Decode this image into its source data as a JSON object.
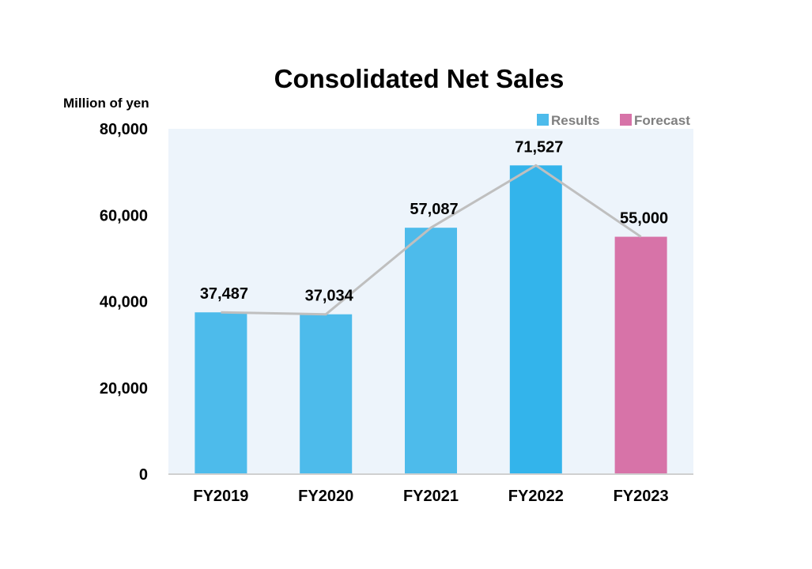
{
  "chart_data": {
    "type": "bar",
    "title": "Consolidated Net Sales",
    "ylabel": "Million of yen",
    "xlabel": "",
    "categories": [
      "FY2019",
      "FY2020",
      "FY2021",
      "FY2022",
      "FY2023"
    ],
    "values": [
      37487,
      37034,
      57087,
      71527,
      55000
    ],
    "data_labels": [
      "37,487",
      "37,034",
      "57,087",
      "71,527",
      "55,000"
    ],
    "bar_kind": [
      "Results",
      "Results",
      "Results",
      "Results",
      "Forecast"
    ],
    "ylim": [
      0,
      80000
    ],
    "yticks": [
      0,
      20000,
      40000,
      60000,
      80000
    ],
    "ytick_labels": [
      "0",
      "20,000",
      "40,000",
      "60,000",
      "80,000"
    ],
    "grid": false,
    "trend_line": true,
    "legend": {
      "placement": "top-right",
      "items": [
        {
          "label": "Results",
          "color": "#4dbbeb"
        },
        {
          "label": "Forecast",
          "color": "#d773a8"
        }
      ]
    },
    "colors": {
      "results": "#4dbbeb",
      "results_highlight": "#33b4eb",
      "forecast": "#d773a8",
      "plot_background": "#edf4fb",
      "trend_line": "#bfbfbf",
      "axis": "#d0d0d0"
    }
  }
}
